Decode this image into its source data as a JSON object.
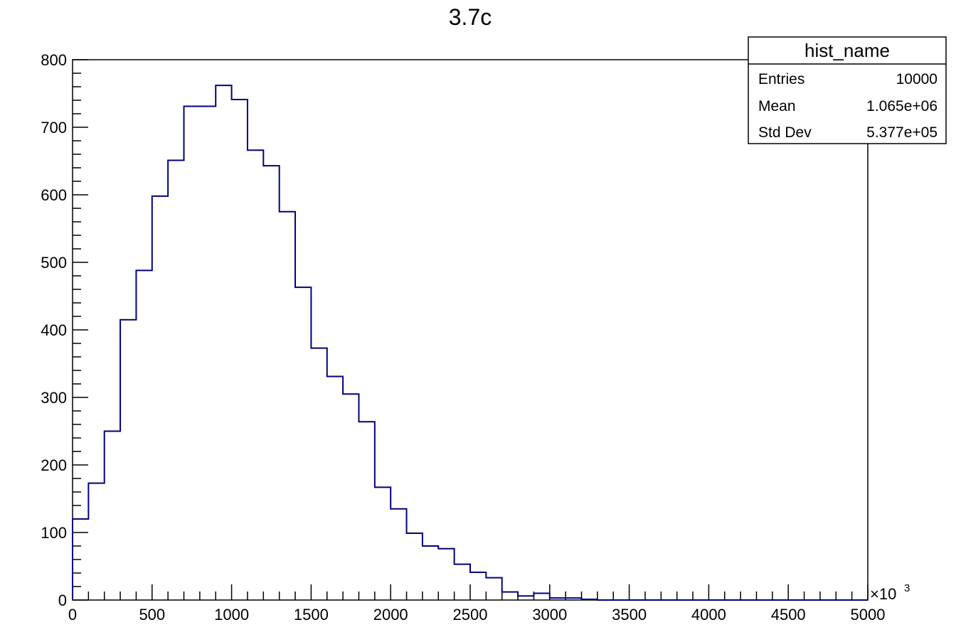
{
  "chart_data": {
    "type": "bar",
    "title": "3.7c",
    "xlabel": "",
    "ylabel": "",
    "x_multiplier": "×10",
    "x_multiplier_exp": "3",
    "xlim": [
      0,
      5000
    ],
    "ylim": [
      0,
      800
    ],
    "bin_width": 100,
    "bin_edges": [
      0,
      100,
      200,
      300,
      400,
      500,
      600,
      700,
      800,
      900,
      1000,
      1100,
      1200,
      1300,
      1400,
      1500,
      1600,
      1700,
      1800,
      1900,
      2000,
      2100,
      2200,
      2300,
      2400,
      2500,
      2600,
      2700,
      2800,
      2900,
      3000,
      3100,
      3200,
      3300,
      3400,
      3500,
      3600,
      3700,
      3800,
      3900,
      4000,
      4100,
      4200,
      4300,
      4400,
      4500,
      4600,
      4700,
      4800,
      4900,
      5000
    ],
    "values": [
      120,
      173,
      250,
      415,
      488,
      598,
      651,
      731,
      731,
      762,
      741,
      666,
      643,
      575,
      463,
      373,
      331,
      305,
      264,
      167,
      135,
      99,
      80,
      76,
      53,
      41,
      33,
      12,
      6,
      10,
      3,
      3,
      1,
      0,
      0,
      0,
      0,
      0,
      0,
      0,
      0,
      0,
      0,
      0,
      0,
      0,
      0,
      0,
      0,
      0
    ],
    "x_tick_labels": [
      "0",
      "500",
      "1000",
      "1500",
      "2000",
      "2500",
      "3000",
      "3500",
      "4000",
      "4500",
      "5000"
    ],
    "y_tick_labels": [
      "0",
      "100",
      "200",
      "300",
      "400",
      "500",
      "600",
      "700",
      "800"
    ],
    "line_color": "#000080",
    "grid": false,
    "legend": "none",
    "stats_box": {
      "placement": "top-right",
      "title": "hist_name",
      "rows": [
        {
          "label": "Entries",
          "value": "10000"
        },
        {
          "label": "Mean",
          "value": "1.065e+06"
        },
        {
          "label": "Std Dev",
          "value": "5.377e+05"
        }
      ]
    }
  }
}
